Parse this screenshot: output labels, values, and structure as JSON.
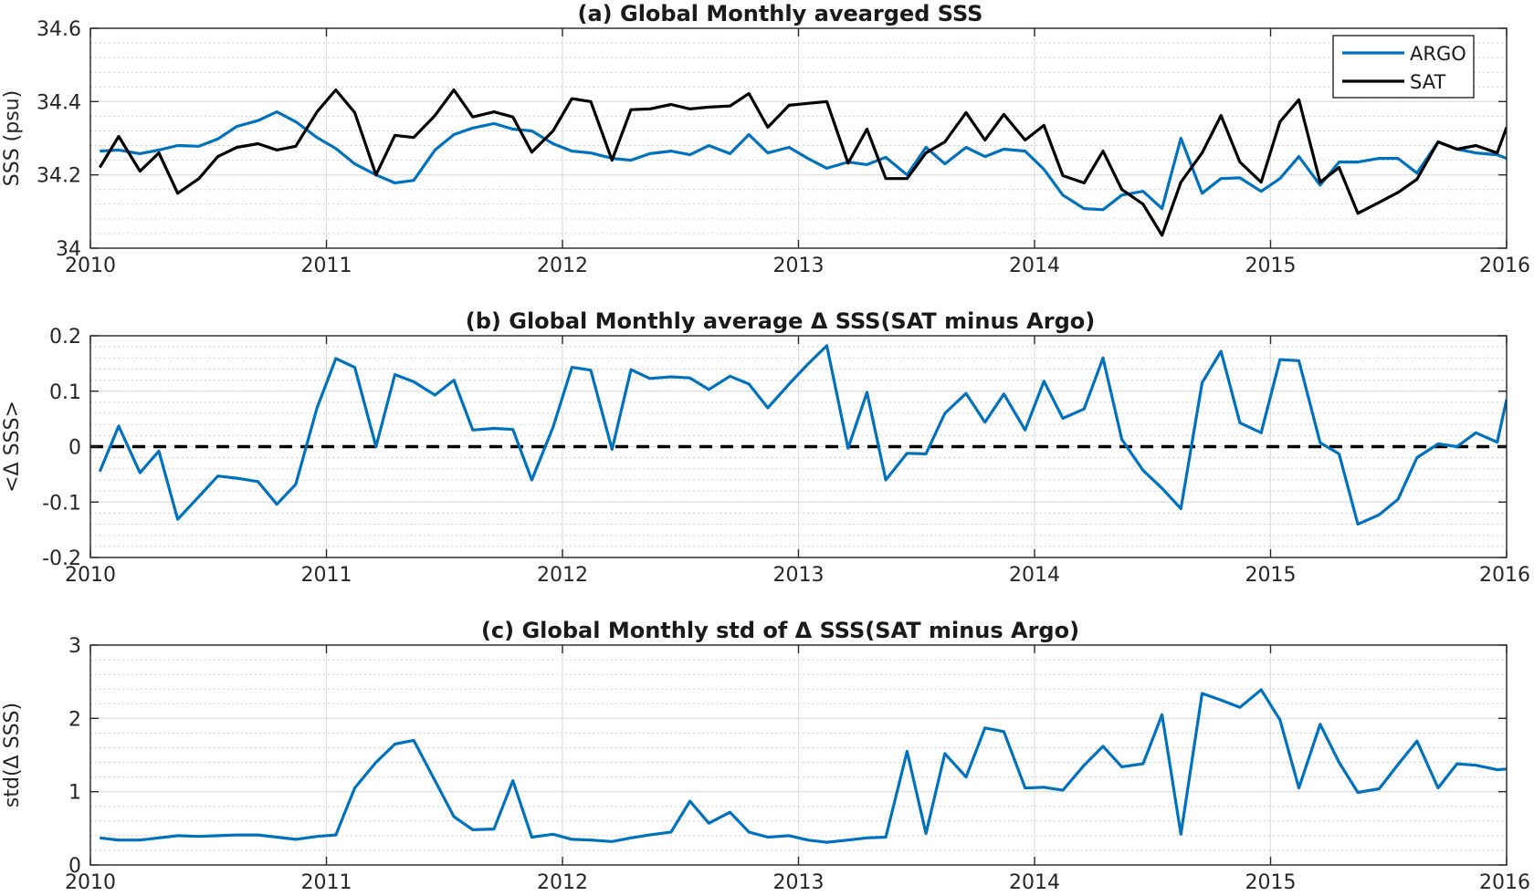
{
  "chart_data": [
    {
      "type": "line",
      "title": "(a) Global Monthly avearged SSS",
      "xlabel": "",
      "ylabel": "SSS (psu)",
      "xlim": [
        2010,
        2016
      ],
      "ylim": [
        34,
        34.6
      ],
      "xticks": [
        "2010",
        "2011",
        "2012",
        "2013",
        "2014",
        "2015",
        "2016"
      ],
      "yticks": [
        "34",
        "34.2",
        "34.4",
        "34.6"
      ],
      "grid": true,
      "legend": "top-right",
      "series": [
        {
          "name": "ARGO",
          "color": "#0072BD",
          "x": [
            2010.04,
            2010.12,
            2010.21,
            2010.29,
            2010.37,
            2010.46,
            2010.54,
            2010.62,
            2010.71,
            2010.79,
            2010.87,
            2010.96,
            2011.04,
            2011.12,
            2011.21,
            2011.29,
            2011.37,
            2011.46,
            2011.54,
            2011.62,
            2011.71,
            2011.79,
            2011.87,
            2011.96,
            2012.04,
            2012.12,
            2012.21,
            2012.29,
            2012.37,
            2012.46,
            2012.54,
            2012.62,
            2012.71,
            2012.79,
            2012.87,
            2012.96,
            2013.04,
            2013.12,
            2013.21,
            2013.29,
            2013.37,
            2013.46,
            2013.54,
            2013.62,
            2013.71,
            2013.79,
            2013.87,
            2013.96,
            2014.04,
            2014.12,
            2014.21,
            2014.29,
            2014.37,
            2014.46,
            2014.54,
            2014.62,
            2014.71,
            2014.79,
            2014.87,
            2014.96,
            2015.04,
            2015.12,
            2015.21,
            2015.29,
            2015.37,
            2015.46,
            2015.54,
            2015.62,
            2015.71,
            2015.79,
            2015.87,
            2015.96,
            2016.0
          ],
          "y": [
            34.265,
            34.268,
            34.258,
            34.268,
            34.28,
            34.278,
            34.298,
            34.332,
            34.348,
            34.372,
            34.345,
            34.302,
            34.272,
            34.23,
            34.2,
            34.178,
            34.185,
            34.268,
            34.31,
            34.328,
            34.34,
            34.325,
            34.32,
            34.285,
            34.265,
            34.26,
            34.245,
            34.24,
            34.258,
            34.265,
            34.255,
            34.28,
            34.258,
            34.31,
            34.26,
            34.275,
            34.245,
            34.218,
            34.235,
            34.228,
            34.248,
            34.2,
            34.275,
            34.23,
            34.275,
            34.25,
            34.27,
            34.265,
            34.215,
            34.145,
            34.108,
            34.105,
            34.145,
            34.155,
            34.108,
            34.3,
            34.15,
            34.19,
            34.192,
            34.155,
            34.19,
            34.25,
            34.172,
            34.235,
            34.235,
            34.245,
            34.245,
            34.205,
            34.29,
            34.27,
            34.26,
            34.255,
            34.245
          ]
        },
        {
          "name": "SAT",
          "color": "#000000",
          "x": [
            2010.04,
            2010.12,
            2010.21,
            2010.29,
            2010.37,
            2010.46,
            2010.54,
            2010.62,
            2010.71,
            2010.79,
            2010.87,
            2010.96,
            2011.04,
            2011.12,
            2011.21,
            2011.29,
            2011.37,
            2011.46,
            2011.54,
            2011.62,
            2011.71,
            2011.79,
            2011.87,
            2011.96,
            2012.04,
            2012.12,
            2012.21,
            2012.29,
            2012.37,
            2012.46,
            2012.54,
            2012.62,
            2012.71,
            2012.79,
            2012.87,
            2012.96,
            2013.04,
            2013.12,
            2013.21,
            2013.29,
            2013.37,
            2013.46,
            2013.54,
            2013.62,
            2013.71,
            2013.79,
            2013.87,
            2013.96,
            2014.04,
            2014.12,
            2014.21,
            2014.29,
            2014.37,
            2014.46,
            2014.54,
            2014.62,
            2014.71,
            2014.79,
            2014.87,
            2014.96,
            2015.04,
            2015.12,
            2015.21,
            2015.29,
            2015.37,
            2015.46,
            2015.54,
            2015.62,
            2015.71,
            2015.79,
            2015.87,
            2015.96,
            2016.0
          ],
          "y": [
            34.22,
            34.305,
            34.21,
            34.26,
            34.15,
            34.19,
            34.25,
            34.275,
            34.285,
            34.268,
            34.278,
            34.372,
            34.432,
            34.37,
            34.2,
            34.308,
            34.302,
            34.362,
            34.432,
            34.358,
            34.372,
            34.358,
            34.262,
            34.32,
            34.408,
            34.4,
            34.24,
            34.378,
            34.38,
            34.392,
            34.38,
            34.385,
            34.388,
            34.422,
            34.33,
            34.39,
            34.395,
            34.4,
            34.232,
            34.325,
            34.19,
            34.19,
            34.26,
            34.29,
            34.37,
            34.295,
            34.365,
            34.295,
            34.335,
            34.198,
            34.178,
            34.265,
            34.16,
            34.12,
            34.035,
            34.18,
            34.26,
            34.362,
            34.235,
            34.18,
            34.345,
            34.405,
            34.18,
            34.22,
            34.095,
            34.125,
            34.152,
            34.188,
            34.29,
            34.27,
            34.28,
            34.26,
            34.33
          ]
        }
      ]
    },
    {
      "type": "line",
      "title": "(b) Global Monthly average Δ SSS(SAT minus Argo)",
      "xlabel": "",
      "ylabel": "<Δ SSS>",
      "xlim": [
        2010,
        2016
      ],
      "ylim": [
        -0.2,
        0.2
      ],
      "xticks": [
        "2010",
        "2011",
        "2012",
        "2013",
        "2014",
        "2015",
        "2016"
      ],
      "yticks": [
        "-0.2",
        "-0.1",
        "0",
        "0.1",
        "0.2"
      ],
      "grid": true,
      "zero_line": "dashed black",
      "series": [
        {
          "color": "#0072BD",
          "x": [
            2010.04,
            2010.12,
            2010.21,
            2010.29,
            2010.37,
            2010.46,
            2010.54,
            2010.62,
            2010.71,
            2010.79,
            2010.87,
            2010.96,
            2011.04,
            2011.12,
            2011.21,
            2011.29,
            2011.37,
            2011.46,
            2011.54,
            2011.62,
            2011.71,
            2011.79,
            2011.87,
            2011.96,
            2012.04,
            2012.12,
            2012.21,
            2012.29,
            2012.37,
            2012.46,
            2012.54,
            2012.62,
            2012.71,
            2012.79,
            2012.87,
            2012.96,
            2013.04,
            2013.12,
            2013.21,
            2013.29,
            2013.37,
            2013.46,
            2013.54,
            2013.62,
            2013.71,
            2013.79,
            2013.87,
            2013.96,
            2014.04,
            2014.12,
            2014.21,
            2014.29,
            2014.37,
            2014.46,
            2014.54,
            2014.62,
            2014.71,
            2014.79,
            2014.87,
            2014.96,
            2015.04,
            2015.12,
            2015.21,
            2015.29,
            2015.37,
            2015.46,
            2015.54,
            2015.62,
            2015.71,
            2015.79,
            2015.87,
            2015.96,
            2016.0
          ],
          "y": [
            -0.045,
            0.037,
            -0.047,
            -0.008,
            -0.131,
            -0.09,
            -0.053,
            -0.057,
            -0.063,
            -0.104,
            -0.068,
            0.07,
            0.159,
            0.143,
            0.0,
            0.13,
            0.117,
            0.093,
            0.12,
            0.03,
            0.033,
            0.031,
            -0.06,
            0.035,
            0.143,
            0.138,
            -0.005,
            0.139,
            0.123,
            0.126,
            0.124,
            0.103,
            0.127,
            0.113,
            0.07,
            0.113,
            0.149,
            0.182,
            -0.003,
            0.098,
            -0.06,
            -0.012,
            -0.013,
            0.06,
            0.096,
            0.044,
            0.095,
            0.03,
            0.118,
            0.051,
            0.068,
            0.16,
            0.013,
            -0.043,
            -0.075,
            -0.112,
            0.115,
            0.172,
            0.043,
            0.025,
            0.157,
            0.155,
            0.007,
            -0.013,
            -0.14,
            -0.123,
            -0.095,
            -0.02,
            0.005,
            0.0,
            0.025,
            0.008,
            0.085
          ]
        }
      ]
    },
    {
      "type": "line",
      "title": "(c) Global Monthly std of Δ SSS(SAT minus Argo)",
      "xlabel": "",
      "ylabel": "std(Δ SSS)",
      "xlim": [
        2010,
        2016
      ],
      "ylim": [
        0,
        3
      ],
      "xticks": [
        "2010",
        "2011",
        "2012",
        "2013",
        "2014",
        "2015",
        "2016"
      ],
      "yticks": [
        "0",
        "1",
        "2",
        "3"
      ],
      "grid": true,
      "series": [
        {
          "color": "#0072BD",
          "x": [
            2010.04,
            2010.12,
            2010.21,
            2010.29,
            2010.37,
            2010.46,
            2010.54,
            2010.62,
            2010.71,
            2010.79,
            2010.87,
            2010.96,
            2011.04,
            2011.12,
            2011.21,
            2011.29,
            2011.37,
            2011.46,
            2011.54,
            2011.62,
            2011.71,
            2011.79,
            2011.87,
            2011.96,
            2012.04,
            2012.12,
            2012.21,
            2012.29,
            2012.37,
            2012.46,
            2012.54,
            2012.62,
            2012.71,
            2012.79,
            2012.87,
            2012.96,
            2013.04,
            2013.12,
            2013.21,
            2013.29,
            2013.37,
            2013.46,
            2013.54,
            2013.62,
            2013.71,
            2013.79,
            2013.87,
            2013.96,
            2014.04,
            2014.12,
            2014.21,
            2014.29,
            2014.37,
            2014.46,
            2014.54,
            2014.62,
            2014.71,
            2014.79,
            2014.87,
            2014.96,
            2015.04,
            2015.12,
            2015.21,
            2015.29,
            2015.37,
            2015.46,
            2015.54,
            2015.62,
            2015.71,
            2015.79,
            2015.87,
            2015.96,
            2016.0
          ],
          "y": [
            0.37,
            0.34,
            0.34,
            0.37,
            0.4,
            0.39,
            0.4,
            0.41,
            0.41,
            0.38,
            0.35,
            0.39,
            0.41,
            1.05,
            1.4,
            1.65,
            1.7,
            1.15,
            0.66,
            0.48,
            0.49,
            1.15,
            0.38,
            0.42,
            0.35,
            0.34,
            0.32,
            0.37,
            0.41,
            0.45,
            0.87,
            0.57,
            0.72,
            0.45,
            0.38,
            0.4,
            0.34,
            0.31,
            0.34,
            0.37,
            0.38,
            1.55,
            0.43,
            1.52,
            1.2,
            1.87,
            1.82,
            1.05,
            1.06,
            1.02,
            1.36,
            1.62,
            1.34,
            1.38,
            2.05,
            0.42,
            2.34,
            2.25,
            2.15,
            2.39,
            1.98,
            1.05,
            1.92,
            1.4,
            0.99,
            1.04,
            1.37,
            1.69,
            1.05,
            1.38,
            1.36,
            1.3,
            1.31
          ]
        }
      ]
    }
  ]
}
